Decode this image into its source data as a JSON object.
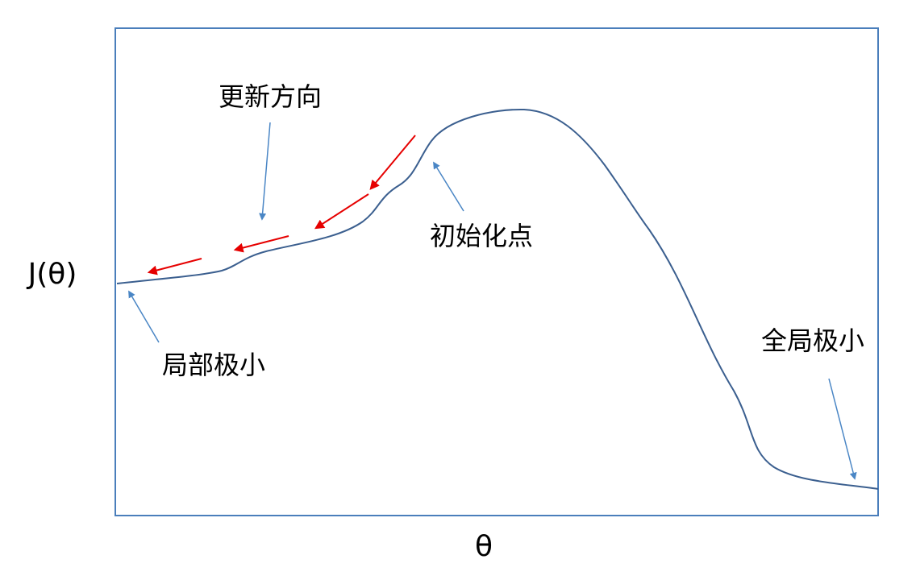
{
  "axes": {
    "y_label": "J(θ)",
    "x_label": "θ"
  },
  "annotations": [
    {
      "label": "更新方向"
    },
    {
      "label": "初始化点"
    },
    {
      "label": "局部极小"
    },
    {
      "label": "全局极小"
    }
  ]
}
